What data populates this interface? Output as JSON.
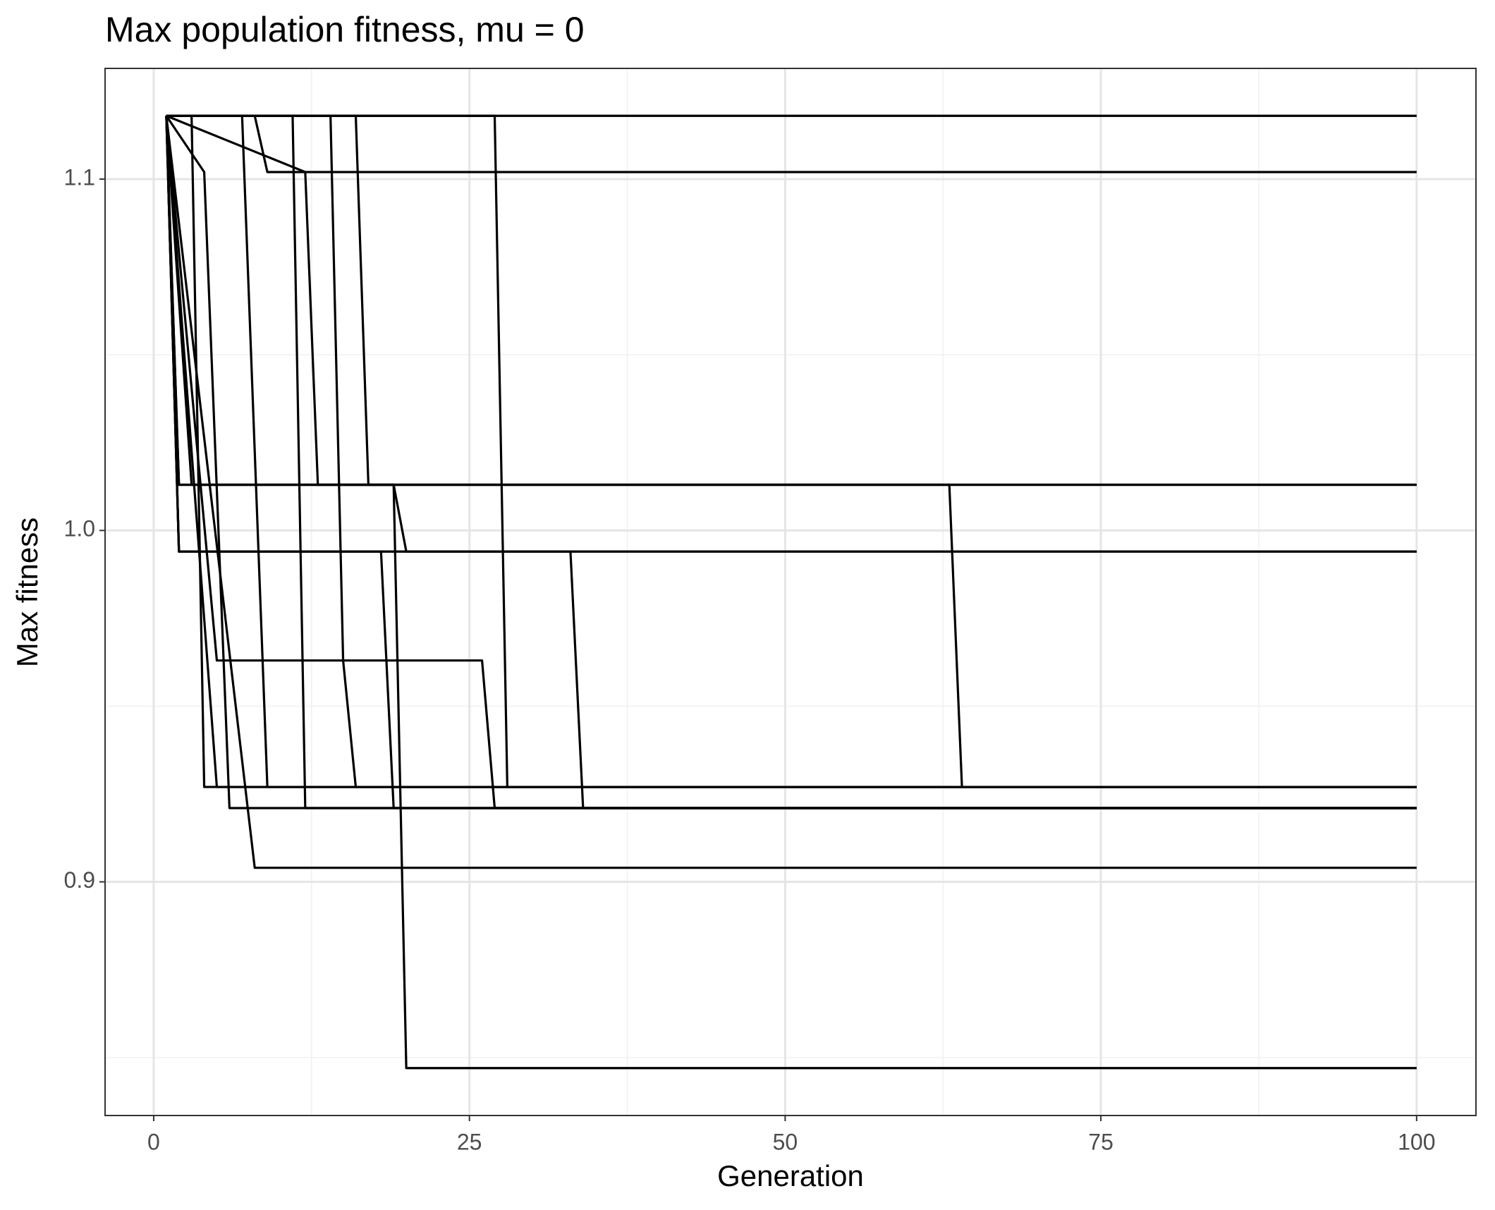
{
  "chart_data": {
    "type": "line",
    "title": "Max population fitness, mu = 0",
    "x_label": "Generation",
    "y_label": "Max fitness",
    "color": "#000000",
    "grid": true,
    "xlim": [
      -3.85,
      104.7
    ],
    "ylim": [
      0.8335,
      1.1315
    ],
    "xticks": [
      0,
      25,
      50,
      75,
      100
    ],
    "yticks": [
      0.9,
      {
        "value": 1,
        "label": "1.0"
      },
      1.1
    ],
    "xminorticks": [
      12.5,
      37.5,
      62.5,
      87.5
    ],
    "yminorticks": [
      0.85,
      0.95,
      1.05
    ],
    "series": [
      {
        "x": [
          1,
          100
        ],
        "values": [
          1.118,
          1.118
        ]
      },
      {
        "x": [
          1,
          8,
          9,
          100
        ],
        "values": [
          1.118,
          1.118,
          1.102,
          1.102
        ]
      },
      {
        "x": [
          1,
          27,
          28,
          100
        ],
        "values": [
          1.118,
          1.118,
          0.927,
          0.927
        ]
      },
      {
        "x": [
          1,
          2,
          100
        ],
        "values": [
          1.118,
          1.013,
          1.013
        ]
      },
      {
        "x": [
          1,
          2,
          100
        ],
        "values": [
          1.118,
          0.994,
          0.994
        ]
      },
      {
        "x": [
          1,
          16,
          17,
          100
        ],
        "values": [
          1.118,
          1.118,
          1.013,
          1.013
        ]
      },
      {
        "x": [
          1,
          14,
          15,
          16,
          100
        ],
        "values": [
          1.118,
          1.118,
          0.963,
          0.927,
          0.927
        ]
      },
      {
        "x": [
          1,
          2,
          63,
          64,
          100
        ],
        "values": [
          1.118,
          1.013,
          1.013,
          0.927,
          0.927
        ]
      },
      {
        "x": [
          1,
          3,
          19,
          20,
          100
        ],
        "values": [
          1.118,
          1.013,
          1.013,
          0.994,
          0.994
        ]
      },
      {
        "x": [
          1,
          2,
          33,
          34,
          100
        ],
        "values": [
          1.118,
          0.994,
          0.994,
          0.921,
          0.921
        ]
      },
      {
        "x": [
          1,
          5,
          26,
          27,
          100
        ],
        "values": [
          1.118,
          0.963,
          0.963,
          0.921,
          0.921
        ]
      },
      {
        "x": [
          1,
          12,
          13,
          19,
          20,
          100
        ],
        "values": [
          1.118,
          1.102,
          1.013,
          1.013,
          0.847,
          0.847
        ]
      },
      {
        "x": [
          1,
          8,
          100
        ],
        "values": [
          1.118,
          0.904,
          0.904
        ]
      },
      {
        "x": [
          1,
          3,
          4,
          100
        ],
        "values": [
          1.118,
          1.118,
          0.927,
          0.927
        ]
      },
      {
        "x": [
          1,
          4,
          6,
          100
        ],
        "values": [
          1.118,
          1.102,
          0.921,
          0.921
        ]
      },
      {
        "x": [
          1,
          11,
          12,
          100
        ],
        "values": [
          1.118,
          1.118,
          0.921,
          0.921
        ]
      },
      {
        "x": [
          1,
          5,
          100
        ],
        "values": [
          1.118,
          0.927,
          0.927
        ]
      },
      {
        "x": [
          1,
          2,
          18,
          19,
          100
        ],
        "values": [
          1.118,
          0.994,
          0.994,
          0.921,
          0.921
        ]
      },
      {
        "x": [
          1,
          7,
          9,
          100
        ],
        "values": [
          1.118,
          1.118,
          0.927,
          0.927
        ]
      }
    ]
  }
}
